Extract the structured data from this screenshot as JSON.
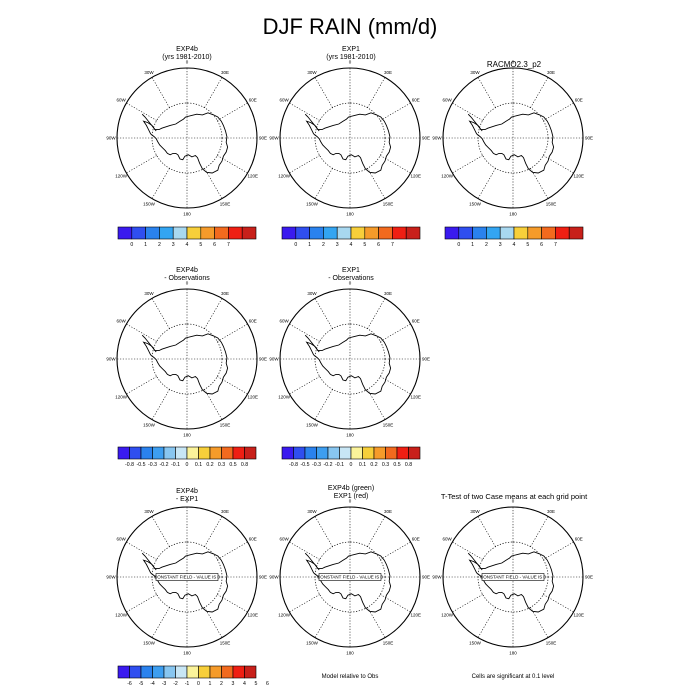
{
  "title": "DJF RAIN (mm/d)",
  "colors": {
    "abs": [
      "#3a1aef",
      "#2f4ef0",
      "#2a82ee",
      "#33a5f2",
      "#a8d8f0",
      "#f7cf3a",
      "#f59b2a",
      "#f26a1e",
      "#ef1f13",
      "#c8201a"
    ],
    "diff": [
      "#3a1aef",
      "#2f4ef0",
      "#2a82ee",
      "#3d9ef0",
      "#88c6f0",
      "#c8e6f5",
      "#fbf39a",
      "#f7cf3a",
      "#f59b2a",
      "#f26a1e",
      "#ef1f13",
      "#c8201a"
    ],
    "ttest": [
      "#3a1aef",
      "#2f4ef0",
      "#2a82ee",
      "#3d9ef0",
      "#88c6f0",
      "#c8e6f5",
      "#fbf39a",
      "#f7cf3a",
      "#f59b2a",
      "#f26a1e",
      "#ef1f13",
      "#c8201a"
    ]
  },
  "map_labels": {
    "lon_0": "0",
    "lon_30e": "30E",
    "lon_60e": "60E",
    "lon_90e": "90E",
    "lon_120e": "120E",
    "lon_150e": "150E",
    "lon_180": "180",
    "lon_150w": "150W",
    "lon_120w": "120W",
    "lon_90w": "90W",
    "lon_60w": "60W",
    "lon_30w": "30W"
  },
  "chart_data": [
    {
      "type": "heatmap",
      "title_lines": [
        "EXP4b",
        "(yrs 1981-2010)"
      ],
      "colorbar": "abs",
      "colorbar_ticks": [
        "0",
        "1",
        "2",
        "3",
        "4",
        "5",
        "6",
        "7"
      ]
    },
    {
      "type": "heatmap",
      "title_lines": [
        "EXP1",
        "(yrs 1981-2010)"
      ],
      "colorbar": "abs",
      "colorbar_ticks": [
        "0",
        "1",
        "2",
        "3",
        "4",
        "5",
        "6",
        "7"
      ]
    },
    {
      "type": "heatmap",
      "title_lines": [
        "RACMO2.3_p2"
      ],
      "colorbar": "abs",
      "colorbar_ticks": [
        "0",
        "1",
        "2",
        "3",
        "4",
        "5",
        "6",
        "7"
      ]
    },
    {
      "type": "heatmap",
      "title_lines": [
        "EXP4b",
        "- Observations"
      ],
      "colorbar": "diff",
      "colorbar_ticks": [
        "-0.8",
        "-0.5",
        "-0.3",
        "-0.2",
        "-0.1",
        "0",
        "0.1",
        "0.2",
        "0.3",
        "0.5",
        "0.8"
      ]
    },
    {
      "type": "heatmap",
      "title_lines": [
        "EXP1",
        "- Observations"
      ],
      "colorbar": "diff",
      "colorbar_ticks": [
        "-0.8",
        "-0.5",
        "-0.3",
        "-0.2",
        "-0.1",
        "0",
        "0.1",
        "0.2",
        "0.3",
        "0.5",
        "0.8"
      ]
    },
    {
      "type": "heatmap",
      "title_lines": [
        "EXP4b",
        "- EXP1"
      ],
      "field_label": "CONSTANT FIELD - VALUE IS 0",
      "colorbar": "ttest",
      "colorbar_ticks": [
        "-6",
        "-5",
        "-4",
        "-3",
        "-2",
        "-1",
        "0",
        "1",
        "2",
        "3",
        "4",
        "5",
        "6"
      ]
    },
    {
      "type": "heatmap",
      "title_lines": [
        "EXP4b (green)",
        "EXP1 (red)"
      ],
      "field_label": "CONSTANT FIELD - VALUE IS 0",
      "note": "Model relative to Obs"
    },
    {
      "type": "heatmap",
      "title_lines": [
        "T-Test of two Case means at each grid point"
      ],
      "field_label": "CONSTANT FIELD - VALUE IS 0",
      "note": "Cells are significant at 0.1 level"
    }
  ]
}
